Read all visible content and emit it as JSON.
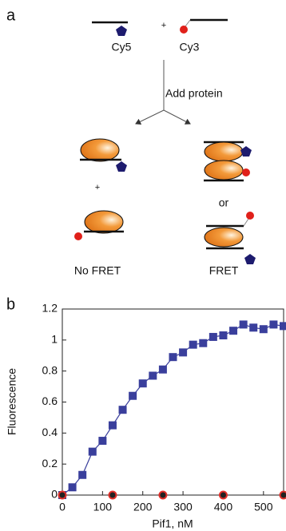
{
  "panel_a": {
    "label": "a",
    "plus_1": "+",
    "cy5": "Cy5",
    "cy3": "Cy3",
    "step": "Add protein",
    "plus_2": "+",
    "or": "or",
    "no_fret": "No FRET",
    "fret": "FRET"
  },
  "panel_b_label": "b",
  "chart_data": {
    "type": "scatter",
    "ylabel": "Fluorescence",
    "xlabel": "Pif1, nM",
    "x": [
      0,
      25,
      50,
      75,
      100,
      125,
      150,
      175,
      200,
      225,
      250,
      275,
      300,
      325,
      350,
      375,
      400,
      425,
      450,
      475,
      500,
      525,
      550
    ],
    "series": [
      {
        "color": "#3a3f9c",
        "marker": "square",
        "line": true,
        "values": [
          0,
          0.05,
          0.13,
          0.28,
          0.35,
          0.45,
          0.55,
          0.64,
          0.72,
          0.77,
          0.81,
          0.89,
          0.92,
          0.97,
          0.98,
          1.02,
          1.03,
          1.06,
          1.1,
          1.08,
          1.07,
          1.1,
          1.09
        ]
      },
      {
        "color": "#e0302a",
        "marker": "circle",
        "line": false,
        "values": [
          0,
          null,
          null,
          null,
          null,
          0,
          null,
          null,
          null,
          null,
          0,
          null,
          null,
          null,
          null,
          null,
          0,
          null,
          null,
          null,
          null,
          null,
          0
        ]
      }
    ],
    "xlim": [
      0,
      550
    ],
    "xticks": [
      0,
      100,
      200,
      300,
      400,
      500
    ],
    "ylim": [
      0,
      1.2
    ],
    "yticks": [
      0,
      0.2,
      0.4,
      0.6,
      0.8,
      1,
      1.2
    ]
  }
}
